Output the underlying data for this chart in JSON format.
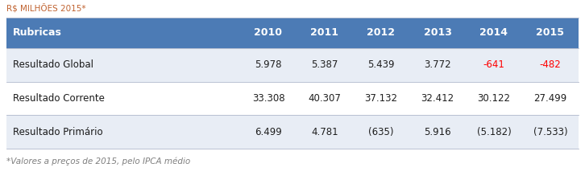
{
  "title_above": "R$ MILHÕES 2015*",
  "title_color": "#C0622F",
  "footer": "*Valores a preços de 2015, pelo IPCA médio",
  "footer_color": "#7F7F7F",
  "header_bg": "#4C7BB5",
  "header_text_color": "#FFFFFF",
  "row_bg_1": "#E8EDF5",
  "row_bg_2": "#FFFFFF",
  "row_bg_3": "#E8EDF5",
  "table_border_color": "#B0B8CC",
  "col_header": "Rubricas",
  "years": [
    "2010",
    "2011",
    "2012",
    "2013",
    "2014",
    "2015"
  ],
  "rows": [
    {
      "label": "Resultado Global",
      "values": [
        "5.978",
        "5.387",
        "5.439",
        "3.772",
        "-641",
        "-482"
      ],
      "colors": [
        "#1F1F1F",
        "#1F1F1F",
        "#1F1F1F",
        "#1F1F1F",
        "#FF0000",
        "#FF0000"
      ]
    },
    {
      "label": "Resultado Corrente",
      "values": [
        "33.308",
        "40.307",
        "37.132",
        "32.412",
        "30.122",
        "27.499"
      ],
      "colors": [
        "#1F1F1F",
        "#1F1F1F",
        "#1F1F1F",
        "#1F1F1F",
        "#1F1F1F",
        "#1F1F1F"
      ]
    },
    {
      "label": "Resultado Primário",
      "values": [
        "6.499",
        "4.781",
        "(635)",
        "5.916",
        "(5.182)",
        "(7.533)"
      ],
      "colors": [
        "#1F1F1F",
        "#1F1F1F",
        "#1F1F1F",
        "#1F1F1F",
        "#1F1F1F",
        "#1F1F1F"
      ]
    }
  ],
  "figsize": [
    7.26,
    2.29
  ],
  "dpi": 100,
  "fig_bg": "#FFFFFF"
}
